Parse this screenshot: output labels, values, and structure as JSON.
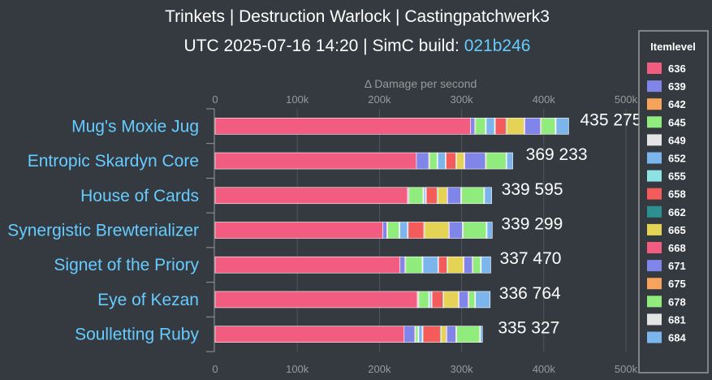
{
  "chart_data": {
    "type": "bar",
    "stacked": true,
    "orientation": "horizontal",
    "title": "Trinkets | Destruction Warlock | Castingpatchwerk3",
    "subtitle_prefix": "UTC 2025-07-16 14:20 | SimC build: ",
    "subtitle_link": "021b246",
    "xlabel": "Δ Damage per second",
    "xlim": [
      0,
      500000
    ],
    "ticks": [
      {
        "value": 0,
        "label": "0"
      },
      {
        "value": 100000,
        "label": "100k"
      },
      {
        "value": 200000,
        "label": "200k"
      },
      {
        "value": 300000,
        "label": "300k"
      },
      {
        "value": 400000,
        "label": "400k"
      },
      {
        "value": 500000,
        "label": "500k"
      }
    ],
    "grid": true,
    "legend_title": "Itemlevel",
    "legend_position": "right",
    "series": [
      {
        "name": "636",
        "color": "#f15c80"
      },
      {
        "name": "639",
        "color": "#8085e9"
      },
      {
        "name": "642",
        "color": "#f7a35c"
      },
      {
        "name": "645",
        "color": "#90ed7d"
      },
      {
        "name": "649",
        "color": "#e4e4e4"
      },
      {
        "name": "652",
        "color": "#7cb5ec"
      },
      {
        "name": "655",
        "color": "#8de3e3"
      },
      {
        "name": "658",
        "color": "#f45b5b"
      },
      {
        "name": "662",
        "color": "#2b908f"
      },
      {
        "name": "665",
        "color": "#e4d354"
      },
      {
        "name": "668",
        "color": "#f15c80"
      },
      {
        "name": "671",
        "color": "#8085e9"
      },
      {
        "name": "675",
        "color": "#f7a35c"
      },
      {
        "name": "678",
        "color": "#90ed7d"
      },
      {
        "name": "681",
        "color": "#e4e4e4"
      },
      {
        "name": "684",
        "color": "#7cb5ec"
      }
    ],
    "categories": [
      "Mug's Moxie Jug",
      "Entropic Skardyn Core",
      "House of Cards",
      "Synergistic Brewterializer",
      "Signet of the Priory",
      "Eye of Kezan",
      "Soulletting Ruby"
    ],
    "totals": [
      435275,
      369233,
      339595,
      339299,
      337470,
      336764,
      335327
    ],
    "total_labels": [
      "435 275",
      "369 233",
      "339 595",
      "339 299",
      "337 470",
      "336 764",
      "335 327"
    ],
    "stack_values": [
      [
        311000,
        5000,
        1000,
        12000,
        1000,
        10000,
        1000,
        13000,
        1000,
        21000,
        1000,
        19000,
        1000,
        17000,
        1000,
        15275
      ],
      [
        245000,
        15000,
        1000,
        9000,
        1000,
        9000,
        1000,
        12000,
        1000,
        9000,
        1000,
        25000,
        1000,
        24000,
        1000,
        7233
      ],
      [
        234000,
        1000,
        1000,
        17000,
        1000,
        2000,
        1000,
        13000,
        1000,
        11000,
        1000,
        16000,
        1000,
        27000,
        1000,
        8595
      ],
      [
        204000,
        5000,
        1000,
        14000,
        1000,
        9000,
        1000,
        19000,
        1000,
        29000,
        1000,
        16000,
        1000,
        28000,
        1000,
        6299
      ],
      [
        225000,
        6000,
        1000,
        20000,
        1000,
        18000,
        1000,
        10000,
        1000,
        19000,
        1000,
        10000,
        1000,
        9000,
        1000,
        11470
      ],
      [
        246000,
        1000,
        1000,
        12000,
        1000,
        2000,
        1000,
        13000,
        1000,
        18000,
        1000,
        11000,
        1000,
        7000,
        1000,
        17764
      ],
      [
        230000,
        13000,
        1000,
        3000,
        1000,
        4000,
        1000,
        21000,
        1000,
        6000,
        1000,
        11000,
        1000,
        28000,
        1000,
        2327
      ]
    ]
  }
}
